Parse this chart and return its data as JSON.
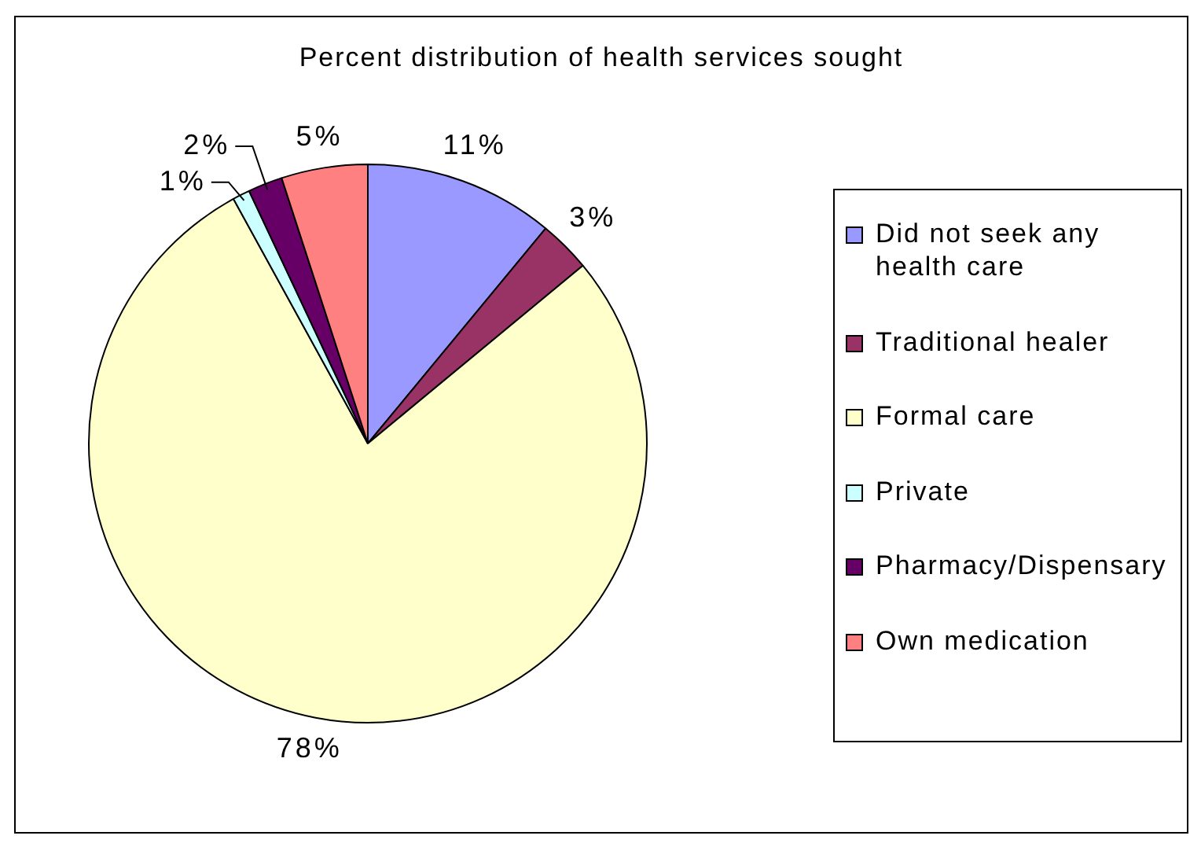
{
  "chart_data": {
    "type": "pie",
    "title": "Percent distribution of health services sought",
    "categories": [
      "Did not seek any health care",
      "Traditional healer",
      "Formal care",
      "Private",
      "Pharmacy/Dispensary",
      "Own medication"
    ],
    "values": [
      11,
      3,
      78,
      1,
      2,
      5
    ],
    "colors": [
      "#9999ff",
      "#993366",
      "#ffffcc",
      "#ccffff",
      "#660066",
      "#ff8080"
    ],
    "value_labels": [
      "11%",
      "3%",
      "78%",
      "1%",
      "2%",
      "5%"
    ],
    "legend": "right"
  }
}
